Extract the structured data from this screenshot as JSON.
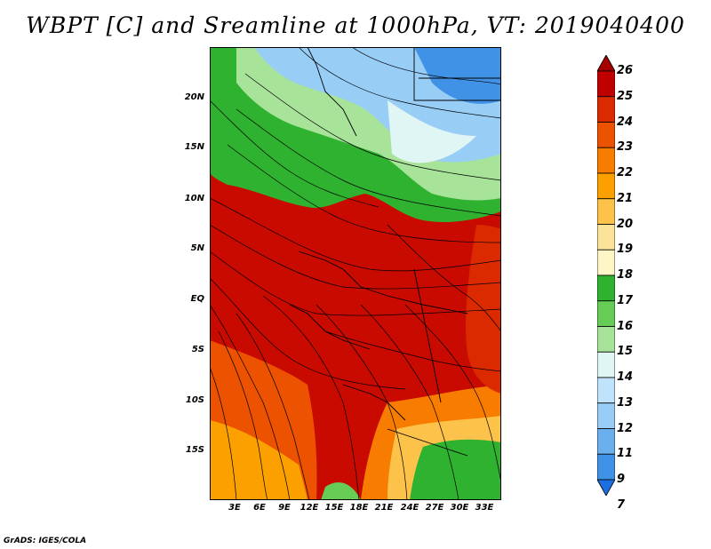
{
  "map": {
    "title": "WBPT [C] and Sreamline at 1000hPa, VT: 2019040400",
    "variable": "WBPT [C]",
    "level": "1000hPa",
    "valid_time": "2019040400",
    "lat_labels": [
      "20N",
      "15N",
      "10N",
      "5N",
      "EQ",
      "5S",
      "10S",
      "15S"
    ],
    "lon_labels": [
      "3E",
      "6E",
      "9E",
      "12E",
      "15E",
      "18E",
      "21E",
      "24E",
      "27E",
      "30E",
      "33E"
    ],
    "colorbar": {
      "labels": [
        "26",
        "25",
        "24",
        "23",
        "22",
        "21",
        "20",
        "19",
        "18",
        "17",
        "16",
        "15",
        "14",
        "13",
        "12",
        "11",
        "9",
        "7"
      ],
      "colors": [
        "#a50000",
        "#c00000",
        "#dc2a00",
        "#ec5200",
        "#f87c00",
        "#fca000",
        "#fdc24a",
        "#fde39a",
        "#fff6c8",
        "#2fb22f",
        "#66cc55",
        "#a8e39a",
        "#e0f6f4",
        "#bfe3fa",
        "#98cdf6",
        "#6ab0ef",
        "#4092e6",
        "#1d6ee0"
      ]
    },
    "credit": "GrADS: IGES/COLA"
  }
}
